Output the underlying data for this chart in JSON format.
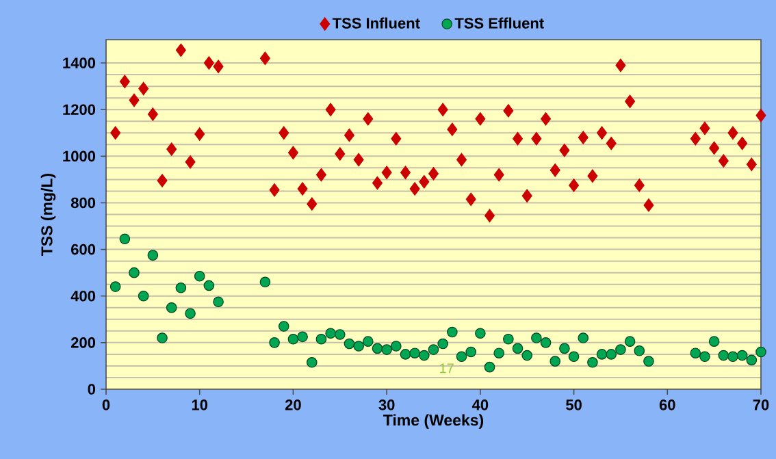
{
  "chart_data": {
    "type": "scatter",
    "xlabel": "Time (Weeks)",
    "ylabel": "TSS (mg/L)",
    "xlim": [
      0,
      70
    ],
    "xticks": [
      0,
      10,
      20,
      30,
      40,
      50,
      60,
      70
    ],
    "ylim": [
      0,
      1500
    ],
    "yticks": [
      0,
      200,
      400,
      600,
      800,
      1000,
      1200,
      1400
    ],
    "grid": "y",
    "legend": "top",
    "annotations": [
      "17"
    ],
    "series": [
      {
        "name": "TSS Influent",
        "color": "#cc0000",
        "marker": "diamond",
        "x": [
          1,
          2,
          3,
          4,
          5,
          6,
          7,
          8,
          9,
          10,
          11,
          12,
          17,
          18,
          19,
          20,
          21,
          22,
          23,
          24,
          25,
          26,
          27,
          28,
          29,
          30,
          31,
          32,
          33,
          34,
          35,
          36,
          37,
          38,
          39,
          40,
          41,
          42,
          43,
          44,
          45,
          46,
          47,
          48,
          49,
          50,
          51,
          52,
          53,
          54,
          55,
          56,
          57,
          58,
          63,
          64,
          65,
          66,
          67,
          68,
          69,
          70
        ],
        "values": [
          1100,
          1320,
          1240,
          1290,
          1180,
          895,
          1030,
          1455,
          975,
          1095,
          1400,
          1385,
          1420,
          855,
          1100,
          1015,
          860,
          795,
          920,
          1200,
          1010,
          1090,
          985,
          1160,
          885,
          930,
          1075,
          930,
          860,
          890,
          925,
          1200,
          1115,
          985,
          815,
          1160,
          745,
          920,
          1195,
          1075,
          830,
          1075,
          1160,
          940,
          1025,
          875,
          1080,
          915,
          1100,
          1055,
          1390,
          1235,
          875,
          790,
          1075,
          1120,
          1035,
          980,
          1100,
          1055,
          965,
          1175
        ]
      },
      {
        "name": "TSS Effluent",
        "color": "#00a651",
        "marker": "circle",
        "x": [
          1,
          2,
          3,
          4,
          5,
          6,
          7,
          8,
          9,
          10,
          11,
          12,
          17,
          18,
          19,
          20,
          21,
          22,
          23,
          24,
          25,
          26,
          27,
          28,
          29,
          30,
          31,
          32,
          33,
          34,
          35,
          36,
          37,
          38,
          39,
          40,
          41,
          42,
          43,
          44,
          45,
          46,
          47,
          48,
          49,
          50,
          51,
          52,
          53,
          54,
          55,
          56,
          57,
          58,
          63,
          64,
          65,
          66,
          67,
          68,
          69,
          70
        ],
        "values": [
          440,
          645,
          500,
          400,
          575,
          220,
          350,
          435,
          325,
          485,
          445,
          375,
          460,
          200,
          270,
          215,
          225,
          115,
          215,
          240,
          235,
          195,
          185,
          205,
          175,
          170,
          185,
          150,
          155,
          145,
          170,
          195,
          245,
          140,
          160,
          240,
          95,
          155,
          215,
          175,
          145,
          220,
          200,
          120,
          175,
          140,
          220,
          115,
          150,
          150,
          170,
          205,
          165,
          120,
          155,
          140,
          205,
          145,
          140,
          145,
          125,
          160
        ]
      }
    ]
  }
}
